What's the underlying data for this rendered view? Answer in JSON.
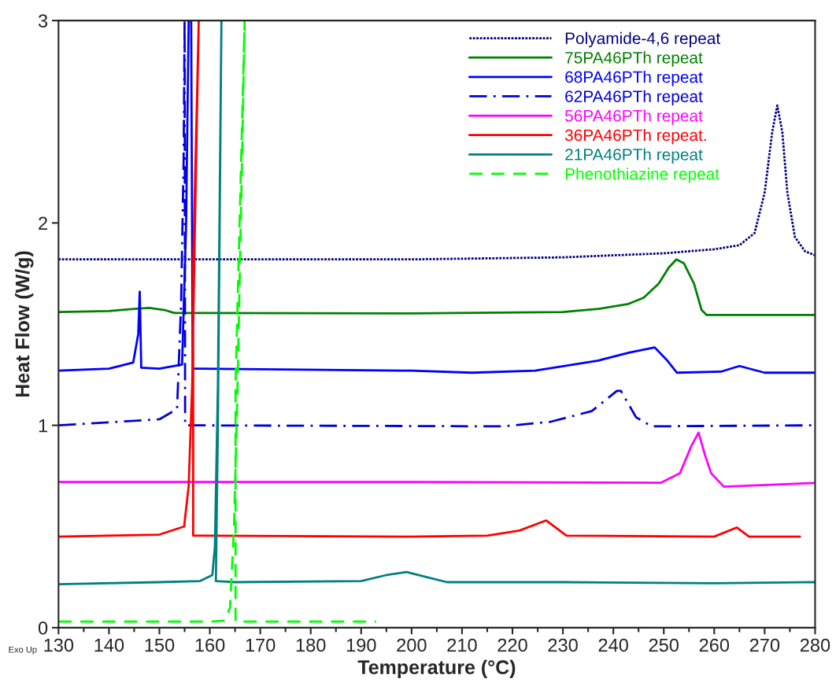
{
  "chart_data": {
    "type": "line",
    "xlabel": "Temperature (°C)",
    "ylabel": "Heat Flow (W/g)",
    "xlim": [
      130,
      280
    ],
    "xticks": [
      130,
      140,
      150,
      160,
      170,
      180,
      190,
      200,
      210,
      220,
      230,
      240,
      250,
      260,
      270,
      280
    ],
    "ylim": [
      0,
      3
    ],
    "yticks": [
      0,
      1,
      2,
      3
    ],
    "grid": false,
    "legend": "top right",
    "marker": "none",
    "annotations": [
      "Exo Up"
    ],
    "series": [
      {
        "name": "Polyamide-4,6 repeat",
        "color": "#000080",
        "line_style": "dotted",
        "x": [
          130,
          200,
          230,
          250,
          260,
          265,
          268,
          270,
          271.5,
          272.5,
          273.5,
          274.5,
          276,
          278,
          280
        ],
        "values": [
          1.82,
          1.82,
          1.83,
          1.85,
          1.87,
          1.89,
          1.95,
          2.15,
          2.45,
          2.58,
          2.45,
          2.15,
          1.93,
          1.86,
          1.84
        ]
      },
      {
        "name": "75PA46PTh repeat",
        "color": "#008000",
        "line_style": "solid",
        "x": [
          130,
          140,
          145,
          148,
          151,
          153,
          200,
          230,
          237,
          243,
          246,
          249,
          251,
          252.5,
          254,
          256,
          257.5,
          258.5,
          280
        ],
        "values": [
          1.56,
          1.565,
          1.575,
          1.58,
          1.57,
          1.555,
          1.553,
          1.56,
          1.575,
          1.6,
          1.63,
          1.7,
          1.78,
          1.82,
          1.8,
          1.7,
          1.57,
          1.545,
          1.545
        ]
      },
      {
        "name": "68PA46PTh repeat",
        "color": "#0000ff",
        "line_style": "solid",
        "x": [
          130,
          140,
          144.8,
          145.8,
          146.1,
          146.4,
          150,
          154.5,
          155.3,
          155.8,
          156.3,
          156.6,
          200,
          212,
          224.5,
          237,
          243.2,
          248.2,
          250.7,
          252.6,
          261.3,
          265,
          270,
          280
        ],
        "values": [
          1.27,
          1.28,
          1.31,
          1.45,
          1.66,
          1.285,
          1.28,
          1.3,
          2.0,
          3.0,
          3.0,
          1.28,
          1.27,
          1.26,
          1.27,
          1.32,
          1.36,
          1.385,
          1.32,
          1.26,
          1.265,
          1.293,
          1.26,
          1.26
        ]
      },
      {
        "name": "62PA46PTh repeat",
        "color": "#0000d8",
        "line_style": "dashdot",
        "x": [
          130,
          150,
          153.5,
          154.3,
          154.8,
          155.0,
          155.1,
          218.3,
          227.6,
          235.7,
          240.7,
          241.5,
          244.5,
          247.6,
          280
        ],
        "values": [
          1.0,
          1.03,
          1.08,
          1.6,
          2.3,
          3.0,
          1.0,
          0.995,
          1.018,
          1.07,
          1.17,
          1.17,
          1.04,
          0.995,
          1.0
        ]
      },
      {
        "name": "56PA46PTh repeat",
        "color": "#ff00ff",
        "line_style": "solid",
        "x": [
          130,
          200,
          249.4,
          253.2,
          255.5,
          256.9,
          258.2,
          259.4,
          261.9,
          280
        ],
        "values": [
          0.72,
          0.72,
          0.716,
          0.763,
          0.9,
          0.964,
          0.85,
          0.763,
          0.697,
          0.715
        ]
      },
      {
        "name": "36PA46PTh repeat.",
        "color": "#ff0000",
        "line_style": "solid",
        "x": [
          130,
          150,
          154.9,
          155.8,
          156.5,
          157.2,
          157.8,
          156.7,
          156.7,
          200,
          215,
          221.4,
          226.7,
          230.7,
          260,
          264.5,
          266.9,
          277
        ],
        "values": [
          0.45,
          0.46,
          0.5,
          0.7,
          1.2,
          2.2,
          3.0,
          1.8,
          0.455,
          0.45,
          0.455,
          0.48,
          0.53,
          0.455,
          0.45,
          0.495,
          0.45,
          0.45
        ]
      },
      {
        "name": "21PA46PTh repeat",
        "color": "#008080",
        "line_style": "solid",
        "x": [
          130,
          150,
          158,
          160.5,
          161.0,
          161.6,
          162.3,
          161.6,
          161.2,
          165,
          190,
          195,
          199,
          203,
          207,
          230,
          260,
          280
        ],
        "values": [
          0.215,
          0.225,
          0.23,
          0.26,
          0.4,
          1.2,
          3.0,
          1.0,
          0.23,
          0.225,
          0.23,
          0.26,
          0.275,
          0.25,
          0.225,
          0.225,
          0.22,
          0.225
        ]
      },
      {
        "name": "Phenothiazine repeat",
        "color": "#00ff00",
        "line_style": "dashed",
        "x": [
          130,
          160,
          163,
          164,
          164.8,
          165.5,
          166.3,
          166.9,
          165.1,
          165.1,
          193
        ],
        "values": [
          0.03,
          0.03,
          0.035,
          0.1,
          0.5,
          1.2,
          2.2,
          3.0,
          1.2,
          0.03,
          0.03
        ]
      }
    ]
  }
}
